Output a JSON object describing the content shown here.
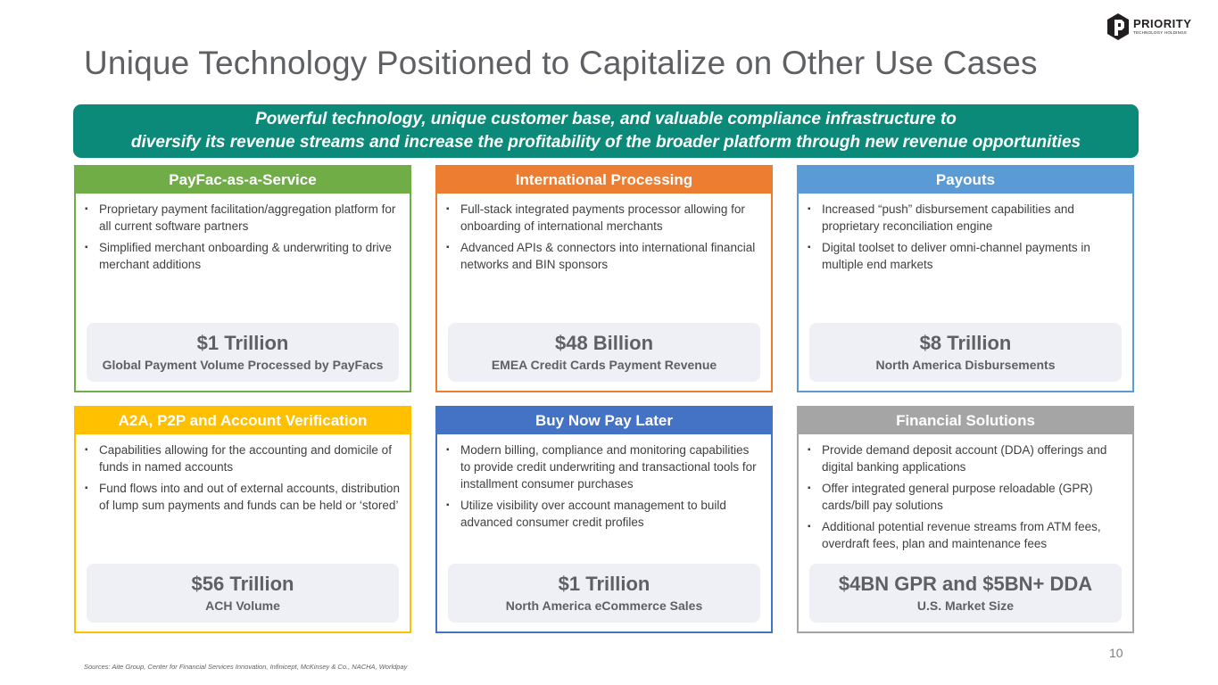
{
  "title": "Unique Technology Positioned to Capitalize on Other Use Cases",
  "logo": {
    "name": "PRIORITY",
    "subtitle": "TECHNOLOGY HOLDINGS"
  },
  "banner": {
    "line1": "Powerful technology, unique customer base, and valuable compliance infrastructure to",
    "line2": "diversify its revenue streams and increase the profitability of the broader platform through new revenue opportunities"
  },
  "cards": [
    {
      "header": "PayFac-as-a-Service",
      "color": "#70ad47",
      "bullets": [
        "Proprietary payment facilitation/aggregation platform for all current software partners",
        "Simplified merchant onboarding & underwriting to drive merchant additions"
      ],
      "stat_value": "$1 Trillion",
      "stat_label": "Global  Payment Volume Processed by PayFacs"
    },
    {
      "header": "International Processing",
      "color": "#ed7d31",
      "bullets": [
        "Full-stack integrated payments processor allowing for onboarding of international merchants",
        "Advanced APIs & connectors into international financial networks and BIN sponsors"
      ],
      "stat_value": "$48 Billion",
      "stat_label": "EMEA Credit Cards Payment Revenue"
    },
    {
      "header": "Payouts",
      "color": "#5b9bd5",
      "bullets": [
        "Increased “push” disbursement capabilities and proprietary reconciliation engine",
        "Digital toolset to deliver omni-channel payments in multiple end markets"
      ],
      "stat_value": "$8 Trillion",
      "stat_label": "North America Disbursements"
    },
    {
      "header": "A2A, P2P and Account Verification",
      "color": "#ffc000",
      "bullets": [
        "Capabilities allowing for the accounting and domicile of funds in named accounts",
        "Fund flows into and out of external accounts, distribution of lump sum payments and funds can be held or ‘stored’"
      ],
      "stat_value": "$56 Trillion",
      "stat_label": "ACH Volume"
    },
    {
      "header": "Buy Now Pay Later",
      "color": "#4472c4",
      "bullets": [
        "Modern billing, compliance and monitoring capabilities to provide credit underwriting and transactional tools for installment consumer purchases",
        "Utilize visibility over account management to build advanced consumer credit profiles"
      ],
      "stat_value": "$1 Trillion",
      "stat_label": "North America eCommerce Sales"
    },
    {
      "header": "Financial Solutions",
      "color": "#a5a5a5",
      "bullets": [
        "Provide demand deposit account (DDA) offerings and digital banking applications",
        "Offer integrated general purpose reloadable (GPR) cards/bill pay solutions",
        "Additional potential revenue streams from ATM fees, overdraft fees, plan and maintenance fees"
      ],
      "stat_value": "$4BN GPR and $5BN+ DDA",
      "stat_label": "U.S. Market Size"
    }
  ],
  "page_number": "10",
  "sources": "Sources: Aite Group, Center for Financial Services Innovation, Infinicept, McKinsey & Co., NACHA, Worldpay"
}
